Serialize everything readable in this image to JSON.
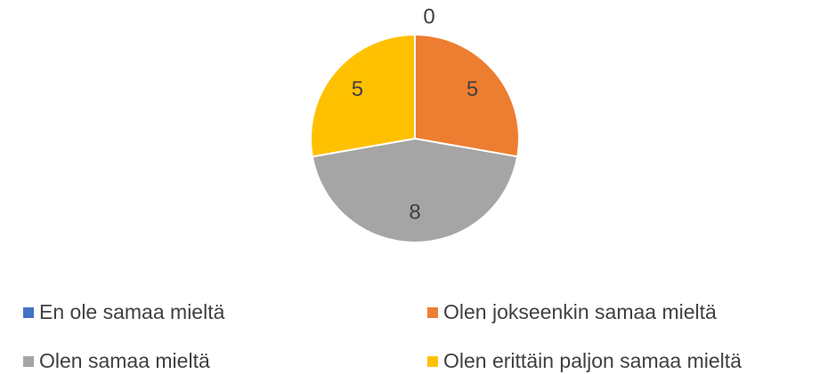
{
  "chart_data": {
    "type": "pie",
    "categories": [
      "En ole samaa mieltä",
      "Olen jokseenkin samaa mieltä",
      "Olen samaa mieltä",
      "Olen erittäin paljon samaa mieltä"
    ],
    "values": [
      0,
      5,
      8,
      5
    ],
    "colors": [
      "#4472c4",
      "#ed7d31",
      "#a5a5a5",
      "#ffc000"
    ]
  }
}
